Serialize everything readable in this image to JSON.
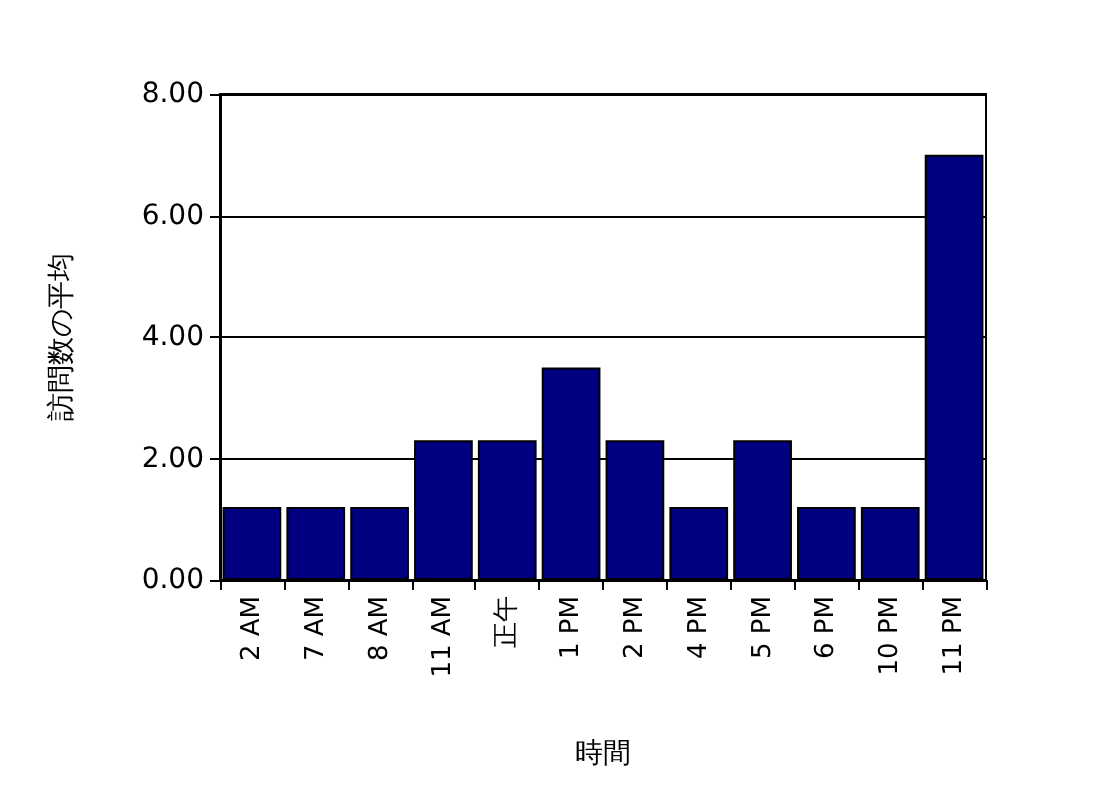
{
  "chart_data": {
    "type": "bar",
    "xlabel": "時間",
    "ylabel": "訪問数の平均",
    "categories": [
      "2 AM",
      "7 AM",
      "8 AM",
      "11 AM",
      "正午",
      "1 PM",
      "2 PM",
      "4 PM",
      "5 PM",
      "6 PM",
      "10 PM",
      "11 PM"
    ],
    "values": [
      1.2,
      1.2,
      1.2,
      2.3,
      2.3,
      3.5,
      2.3,
      1.2,
      2.3,
      1.2,
      1.2,
      7.0
    ],
    "color": "#000080",
    "ylim": [
      0,
      8
    ],
    "yticks": [
      {
        "value": 0,
        "label": "0.00"
      },
      {
        "value": 2,
        "label": "2.00"
      },
      {
        "value": 4,
        "label": "4.00"
      },
      {
        "value": 6,
        "label": "6.00"
      },
      {
        "value": 8,
        "label": "8.00"
      }
    ],
    "grid": "y"
  }
}
